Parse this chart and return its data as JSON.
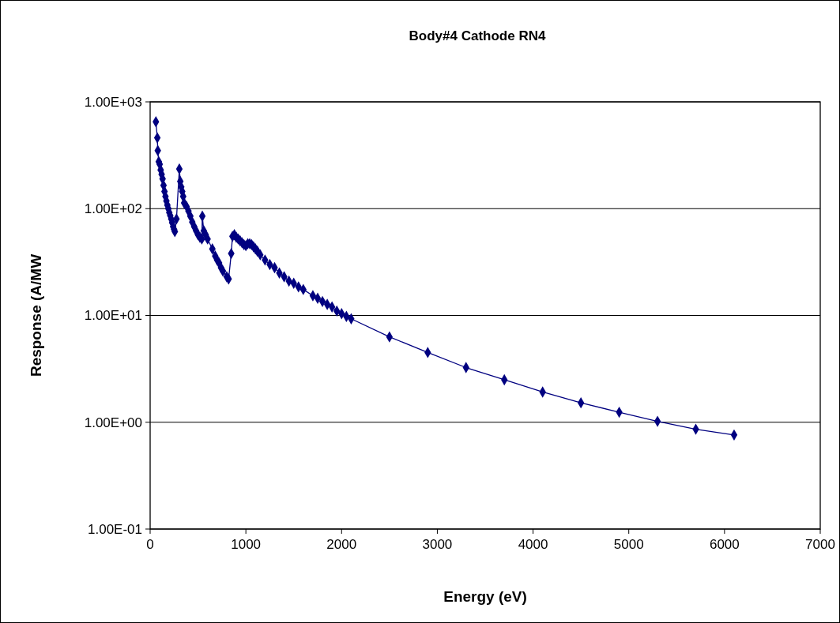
{
  "chart_data": {
    "type": "line",
    "title": "Body#4 Cathode RN4",
    "xlabel": "Energy (eV)",
    "ylabel": "Response (A/MW",
    "log": "y",
    "grid": "y",
    "marker": "diamond",
    "line_style": "solid",
    "xlim": [
      0,
      7000
    ],
    "xticks": [
      0,
      1000,
      2000,
      3000,
      4000,
      5000,
      6000,
      7000
    ],
    "ylim": [
      0.1,
      1000
    ],
    "yticks": [
      {
        "value": 0.1,
        "label": "1.00E-01"
      },
      {
        "value": 1,
        "label": "1.00E+00"
      },
      {
        "value": 10,
        "label": "1.00E+01"
      },
      {
        "value": 100,
        "label": "1.00E+02"
      },
      {
        "value": 1000,
        "label": "1.00E+03"
      }
    ],
    "series": [
      {
        "color": "#000080",
        "x": [
          60,
          75,
          80,
          90,
          100,
          110,
          120,
          130,
          140,
          150,
          160,
          170,
          180,
          190,
          200,
          210,
          220,
          230,
          240,
          250,
          258,
          275,
          305,
          315,
          325,
          335,
          345,
          355,
          380,
          400,
          420,
          440,
          460,
          480,
          500,
          520,
          540,
          545,
          560,
          580,
          600,
          650,
          680,
          700,
          720,
          740,
          760,
          800,
          820,
          847,
          860,
          880,
          900,
          920,
          940,
          960,
          980,
          1000,
          1020,
          1040,
          1060,
          1080,
          1100,
          1120,
          1150,
          1200,
          1250,
          1300,
          1350,
          1400,
          1450,
          1500,
          1550,
          1600,
          1700,
          1750,
          1800,
          1850,
          1900,
          1950,
          2000,
          2050,
          2100,
          2500,
          2900,
          3300,
          3700,
          4100,
          4500,
          4900,
          5300,
          5700,
          6100
        ],
        "values": [
          650,
          460,
          350,
          275,
          260,
          230,
          210,
          190,
          165,
          145,
          130,
          118,
          108,
          100,
          92,
          86,
          80,
          74,
          68,
          64,
          61,
          80,
          235,
          180,
          160,
          145,
          130,
          113,
          105,
          95,
          85,
          75,
          68,
          62,
          57,
          54,
          52,
          85,
          62,
          57,
          52,
          42,
          36,
          33,
          31,
          28,
          26,
          23,
          22,
          38,
          55,
          57,
          54,
          52,
          50,
          48,
          46,
          45,
          47,
          47,
          46,
          44,
          42,
          40,
          37,
          33,
          30,
          28,
          25,
          23,
          21,
          20,
          18.5,
          17.5,
          15.3,
          14.5,
          13.5,
          12.7,
          12,
          11,
          10.4,
          9.8,
          9.3,
          6.3,
          4.5,
          3.25,
          2.5,
          1.92,
          1.52,
          1.24,
          1.02,
          0.86,
          0.76
        ]
      }
    ]
  }
}
